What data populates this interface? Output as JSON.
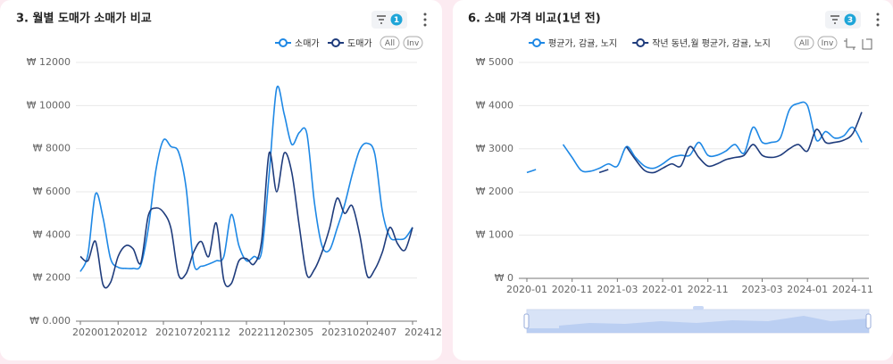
{
  "chart_data": [
    {
      "type": "line",
      "title": "3. 월별 도매가 소매가 비교",
      "filter_count": 1,
      "legend_buttons": [
        "All",
        "Inv"
      ],
      "categories": [
        "202001",
        null,
        null,
        null,
        null,
        "202012",
        null,
        null,
        null,
        null,
        null,
        "202107",
        null,
        null,
        null,
        null,
        "202112",
        null,
        null,
        null,
        null,
        null,
        "202211",
        null,
        null,
        null,
        null,
        "202305",
        null,
        null,
        null,
        null,
        null,
        "202310",
        null,
        null,
        null,
        null,
        "202407",
        null,
        null,
        null,
        null,
        null,
        "202412"
      ],
      "series": [
        {
          "name": "소매가",
          "color": "#1e88e5",
          "values": [
            2300,
            3100,
            5900,
            4800,
            2900,
            2500,
            2450,
            2450,
            2600,
            4300,
            7000,
            8400,
            8100,
            7850,
            6200,
            2700,
            2550,
            2650,
            2800,
            3000,
            4950,
            3500,
            2800,
            3000,
            3200,
            6800,
            10800,
            9600,
            8200,
            8750,
            8700,
            5500,
            3500,
            3300,
            4300,
            5400,
            6800,
            7950,
            8250,
            7750,
            5100,
            3900,
            3800,
            3850,
            4350
          ]
        },
        {
          "name": "도매가",
          "color": "#1f3c7c",
          "values": [
            3000,
            2800,
            3700,
            1700,
            1800,
            3000,
            3500,
            3350,
            2700,
            4900,
            5250,
            5050,
            4300,
            2150,
            2200,
            3200,
            3700,
            3000,
            4550,
            1900,
            1750,
            2800,
            2900,
            2650,
            3700,
            7800,
            6000,
            7800,
            6900,
            4400,
            2150,
            2400,
            3200,
            4300,
            5700,
            5000,
            5350,
            4000,
            2100,
            2400,
            3200,
            4350,
            3600,
            3300,
            4350
          ]
        }
      ],
      "ylim": [
        0,
        12000
      ],
      "yticks": [
        {
          "value": 0,
          "label": "₩ 0.000"
        },
        {
          "value": 2000,
          "label": "₩ 2000"
        },
        {
          "value": 4000,
          "label": "₩ 4000"
        },
        {
          "value": 6000,
          "label": "₩ 6000"
        },
        {
          "value": 8000,
          "label": "₩ 8000"
        },
        {
          "value": 10000,
          "label": "₩ 10000"
        },
        {
          "value": 12000,
          "label": "₩ 12000"
        }
      ],
      "grid": true
    },
    {
      "type": "line",
      "title": "6. 소매 가격 비교(1년 전)",
      "filter_count": 3,
      "legend_buttons": [
        "All",
        "Inv"
      ],
      "categories": [
        "2020-01",
        null,
        null,
        null,
        null,
        "2020-11",
        null,
        null,
        null,
        null,
        "2021-03",
        null,
        null,
        null,
        null,
        "2022-01",
        null,
        null,
        null,
        null,
        "2022-11",
        null,
        null,
        null,
        null,
        null,
        "2023-03",
        null,
        null,
        null,
        null,
        "2024-01",
        null,
        null,
        null,
        null,
        "2024-11",
        null
      ],
      "series": [
        {
          "name": "평균가, 감귤, 노지",
          "color": "#1e88e5",
          "values": [
            2450,
            2520,
            null,
            null,
            3100,
            2800,
            2500,
            2480,
            2550,
            2650,
            2600,
            3050,
            2800,
            2600,
            2550,
            2650,
            2800,
            2850,
            2850,
            3150,
            2850,
            2850,
            2950,
            3100,
            2900,
            3500,
            3150,
            3150,
            3250,
            3900,
            4050,
            4000,
            3200,
            3400,
            3250,
            3300,
            3500,
            3150
          ]
        },
        {
          "name": "작년 동년,월 평균가, 감귤, 노지",
          "color": "#1f3c7c",
          "values": [
            null,
            null,
            null,
            null,
            null,
            null,
            null,
            null,
            2450,
            2520,
            null,
            3050,
            2750,
            2500,
            2450,
            2550,
            2650,
            2600,
            3050,
            2800,
            2600,
            2650,
            2750,
            2800,
            2850,
            3100,
            2850,
            2800,
            2850,
            3000,
            3100,
            2950,
            3450,
            3150,
            3150,
            3200,
            3350,
            3850
          ]
        }
      ],
      "ylim": [
        0,
        5000
      ],
      "yticks": [
        {
          "value": 0,
          "label": "₩ 0"
        },
        {
          "value": 1000,
          "label": "₩ 1000"
        },
        {
          "value": 2000,
          "label": "₩ 2000"
        },
        {
          "value": 3000,
          "label": "₩ 3000"
        },
        {
          "value": 4000,
          "label": "₩ 4000"
        },
        {
          "value": 5000,
          "label": "₩ 5000"
        }
      ],
      "grid": true
    }
  ]
}
